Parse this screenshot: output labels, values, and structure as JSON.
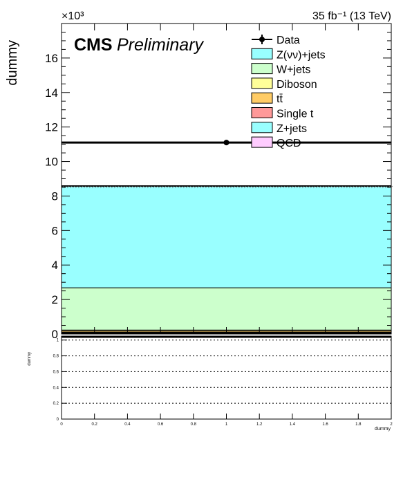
{
  "header": {
    "exponent": "×10³",
    "lumi": "35 fb⁻¹ (13 TeV)",
    "cms": "CMS",
    "preliminary": "Preliminary"
  },
  "legend": [
    {
      "label": "Data",
      "kind": "marker",
      "color": "#000000"
    },
    {
      "label": "Z(νν)+jets",
      "kind": "box",
      "color": "#99ffff"
    },
    {
      "label": "W+jets",
      "kind": "box",
      "color": "#ccffcc"
    },
    {
      "label": "Diboson",
      "kind": "box",
      "color": "#ffff99"
    },
    {
      "label": "tt̄",
      "kind": "box",
      "color": "#ffcc66"
    },
    {
      "label": "Single t",
      "kind": "box",
      "color": "#ff9999"
    },
    {
      "label": "Z+jets",
      "kind": "box",
      "color": "#99ffff"
    },
    {
      "label": "QCD",
      "kind": "box",
      "color": "#ffccff"
    }
  ],
  "chart_data": [
    {
      "type": "bar",
      "stacked": true,
      "title": "",
      "xlabel": "",
      "ylabel": "dummy",
      "x_bin": [
        0,
        2
      ],
      "xlim": [
        0,
        2
      ],
      "ylim": [
        0,
        18000
      ],
      "y_ticks": [
        0,
        2,
        4,
        6,
        8,
        10,
        12,
        14,
        16
      ],
      "y_tick_scale": "×10³",
      "series": [
        {
          "name": "QCD",
          "value": 30,
          "color": "#ffccff"
        },
        {
          "name": "Z+jets",
          "value": 40,
          "color": "#99ffff"
        },
        {
          "name": "Single t",
          "value": 20,
          "color": "#ff9999"
        },
        {
          "name": "tt̄",
          "value": 80,
          "color": "#ffcc66"
        },
        {
          "name": "Diboson",
          "value": 60,
          "color": "#ffff99"
        },
        {
          "name": "W+jets",
          "value": 2450,
          "color": "#ccffcc"
        },
        {
          "name": "Z(νν)+jets",
          "value": 5900,
          "color": "#99ffff"
        }
      ],
      "data_point": {
        "name": "Data",
        "x": 1.0,
        "y": 11100
      }
    },
    {
      "type": "line",
      "title": "",
      "xlabel": "dummy",
      "ylabel": "dummy",
      "xlim": [
        0,
        2
      ],
      "ylim": [
        0,
        1.05
      ],
      "x_ticks": [
        "0",
        "0.2",
        "0.4",
        "0.6",
        "0.8",
        "1",
        "1.2",
        "1.4",
        "1.6",
        "1.8",
        "2"
      ],
      "y_ticks": [
        "0",
        "0.2",
        "0.4",
        "0.6",
        "0.8",
        "1"
      ],
      "reference_lines": [
        0.2,
        0.4,
        0.6,
        0.8,
        1.0
      ]
    }
  ]
}
